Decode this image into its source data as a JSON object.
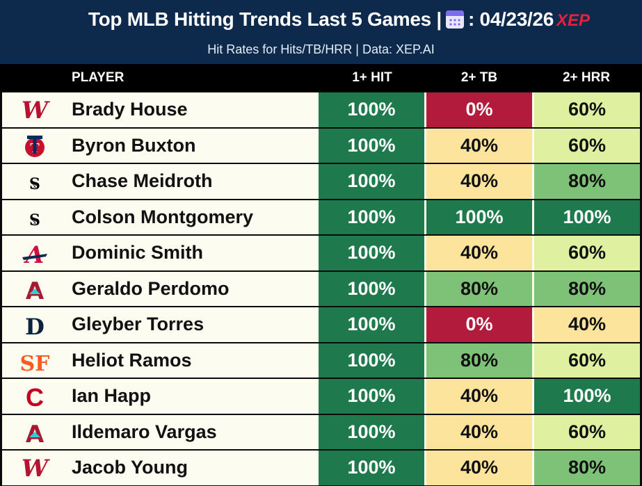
{
  "header": {
    "title_prefix": "Top MLB Hitting Trends Last 5 Games |",
    "title_date": ": 04/23/26",
    "calendar_icon": "calendar-icon",
    "subtitle": "Hit Rates for Hits/TB/HRR | Data: XEP.AI",
    "logo_text": "XEP"
  },
  "columns": {
    "player": "PLAYER",
    "hit": "1+ HIT",
    "tb": "2+ TB",
    "hrr": "2+ HRR"
  },
  "colors": {
    "level_100": "#1e7a4c",
    "level_80": "#7dc276",
    "level_60": "#dff0a1",
    "level_40": "#fde49c",
    "level_0": "#b21b3c"
  },
  "rows": [
    {
      "team": "nationals-logo",
      "name": "Brady House",
      "hit": "100%",
      "tb": "0%",
      "hrr": "60%"
    },
    {
      "team": "twins-logo",
      "name": "Byron Buxton",
      "hit": "100%",
      "tb": "40%",
      "hrr": "60%"
    },
    {
      "team": "white-sox-logo",
      "name": "Chase Meidroth",
      "hit": "100%",
      "tb": "40%",
      "hrr": "80%"
    },
    {
      "team": "white-sox-logo",
      "name": "Colson Montgomery",
      "hit": "100%",
      "tb": "100%",
      "hrr": "100%"
    },
    {
      "team": "braves-logo",
      "name": "Dominic Smith",
      "hit": "100%",
      "tb": "40%",
      "hrr": "60%"
    },
    {
      "team": "diamondbacks-logo",
      "name": "Geraldo Perdomo",
      "hit": "100%",
      "tb": "80%",
      "hrr": "80%"
    },
    {
      "team": "tigers-logo",
      "name": "Gleyber Torres",
      "hit": "100%",
      "tb": "0%",
      "hrr": "40%"
    },
    {
      "team": "giants-logo",
      "name": "Heliot Ramos",
      "hit": "100%",
      "tb": "80%",
      "hrr": "60%"
    },
    {
      "team": "reds-logo",
      "name": "Ian Happ",
      "hit": "100%",
      "tb": "40%",
      "hrr": "100%"
    },
    {
      "team": "diamondbacks-logo",
      "name": "Ildemaro Vargas",
      "hit": "100%",
      "tb": "40%",
      "hrr": "60%"
    },
    {
      "team": "nationals-logo",
      "name": "Jacob Young",
      "hit": "100%",
      "tb": "40%",
      "hrr": "80%"
    }
  ]
}
